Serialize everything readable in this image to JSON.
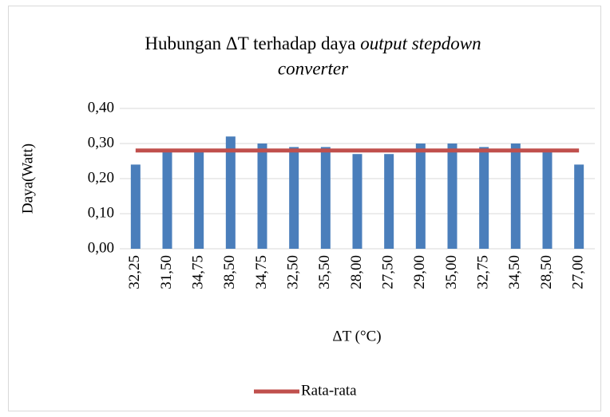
{
  "chart_data": {
    "type": "bar",
    "title": [
      "Hubungan ΔT terhadap daya",
      "output stepdown",
      "converter"
    ],
    "x_label": "ΔT (°C)",
    "y_label": "Daya(Watt)",
    "categories": [
      "32,25",
      "31,50",
      "34,75",
      "38,50",
      "34,75",
      "32,50",
      "35,50",
      "28,00",
      "27,50",
      "29,00",
      "35,00",
      "32,75",
      "34,50",
      "28,50",
      "27,00"
    ],
    "values": [
      0.24,
      0.28,
      0.28,
      0.32,
      0.3,
      0.29,
      0.29,
      0.27,
      0.27,
      0.3,
      0.3,
      0.29,
      0.3,
      0.28,
      0.24
    ],
    "color": "#4a7ebb",
    "series": [
      {
        "name": "Rata-rata",
        "type": "line",
        "color": "#c0504d",
        "values": [
          0.28,
          0.28,
          0.28,
          0.28,
          0.28,
          0.28,
          0.28,
          0.28,
          0.28,
          0.28,
          0.28,
          0.28,
          0.28,
          0.28,
          0.28
        ]
      }
    ],
    "ylim": [
      0,
      0.4
    ],
    "yticks": [
      {
        "value": 0,
        "label": "0,00"
      },
      {
        "value": 0.1,
        "label": "0,10"
      },
      {
        "value": 0.2,
        "label": "0,20"
      },
      {
        "value": 0.3,
        "label": "0,30"
      },
      {
        "value": 0.4,
        "label": "0,40"
      }
    ],
    "grid": true,
    "legend": "bottom"
  }
}
